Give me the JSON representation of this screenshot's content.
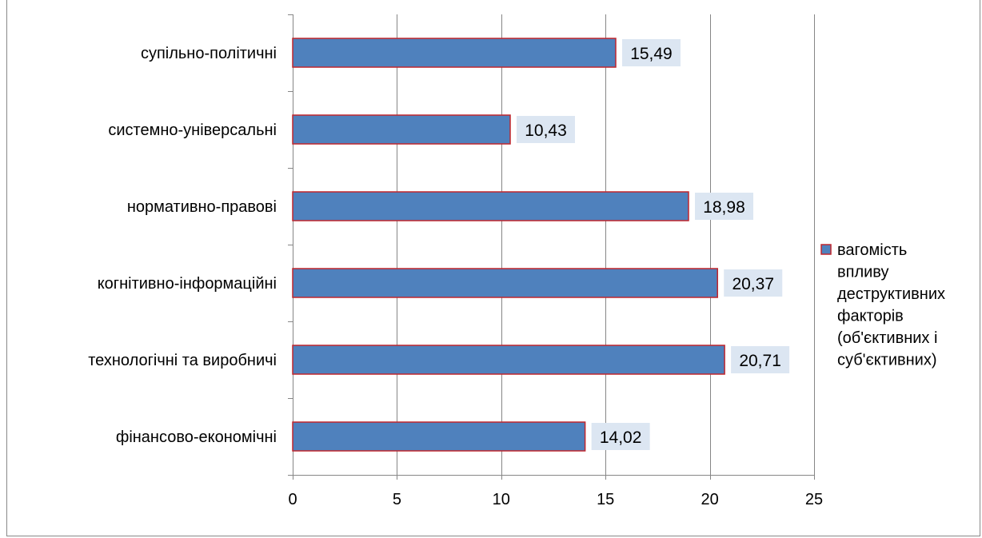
{
  "chart_data": {
    "type": "bar",
    "orientation": "horizontal",
    "categories": [
      "фінансово-економічні",
      "технологічні та  виробничі",
      "когнітивно-інформаційні",
      "нормативно-правові",
      "системно-універсальні",
      "супільно-політичні"
    ],
    "series": [
      {
        "name": "вагомість впливу деструктивних факторів (об'єктивних і суб'єктивних)",
        "legend_lines": [
          "вагомість",
          "впливу",
          "деструктивних",
          "факторів",
          "(об'єктивних і",
          "суб'єктивних)"
        ],
        "values": [
          14.02,
          20.71,
          20.37,
          18.98,
          10.43,
          15.49
        ],
        "data_labels": [
          "14,02",
          "20,71",
          "20,37",
          "18,98",
          "10,43",
          "15,49"
        ],
        "color": "#4f81bd",
        "border_color": "#c0262d"
      }
    ],
    "x_ticks": [
      "0",
      "5",
      "10",
      "15",
      "20",
      "25"
    ],
    "xlim": [
      0,
      25
    ],
    "title": "",
    "xlabel": "",
    "ylabel": "",
    "grid": "vertical",
    "legend_position": "right",
    "data_label_bg": "#dce6f2"
  }
}
